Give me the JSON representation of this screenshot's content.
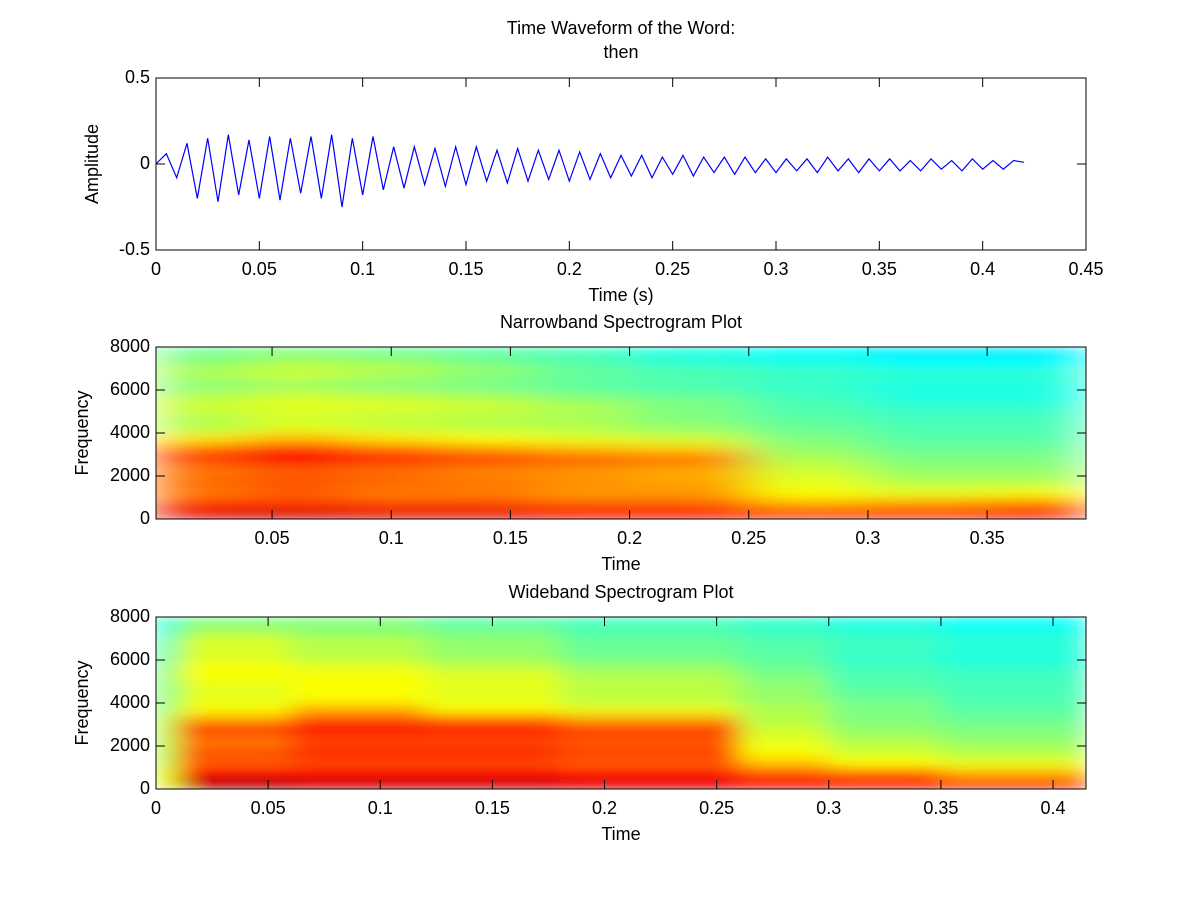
{
  "chart_data": [
    {
      "type": "line",
      "title": [
        "Time Waveform of the Word:",
        "then"
      ],
      "xlabel": "Time (s)",
      "ylabel": "Amplitude",
      "color": "#0000ff",
      "x": [
        0,
        0.005,
        0.01,
        0.015,
        0.02,
        0.025,
        0.03,
        0.035,
        0.04,
        0.045,
        0.05,
        0.055,
        0.06,
        0.065,
        0.07,
        0.075,
        0.08,
        0.085,
        0.09,
        0.095,
        0.1,
        0.105,
        0.11,
        0.115,
        0.12,
        0.125,
        0.13,
        0.135,
        0.14,
        0.145,
        0.15,
        0.155,
        0.16,
        0.165,
        0.17,
        0.175,
        0.18,
        0.185,
        0.19,
        0.195,
        0.2,
        0.205,
        0.21,
        0.215,
        0.22,
        0.225,
        0.23,
        0.235,
        0.24,
        0.245,
        0.25,
        0.255,
        0.26,
        0.265,
        0.27,
        0.275,
        0.28,
        0.285,
        0.29,
        0.295,
        0.3,
        0.305,
        0.31,
        0.315,
        0.32,
        0.325,
        0.33,
        0.335,
        0.34,
        0.345,
        0.35,
        0.355,
        0.36,
        0.365,
        0.37,
        0.375,
        0.38,
        0.385,
        0.39,
        0.395,
        0.4,
        0.405,
        0.41,
        0.415,
        0.42
      ],
      "values": [
        0,
        0.06,
        -0.08,
        0.12,
        -0.2,
        0.15,
        -0.22,
        0.17,
        -0.18,
        0.14,
        -0.2,
        0.16,
        -0.21,
        0.15,
        -0.17,
        0.16,
        -0.2,
        0.17,
        -0.25,
        0.15,
        -0.18,
        0.16,
        -0.15,
        0.1,
        -0.14,
        0.1,
        -0.12,
        0.09,
        -0.13,
        0.1,
        -0.12,
        0.1,
        -0.1,
        0.08,
        -0.11,
        0.09,
        -0.1,
        0.08,
        -0.09,
        0.08,
        -0.1,
        0.07,
        -0.09,
        0.06,
        -0.08,
        0.05,
        -0.07,
        0.05,
        -0.08,
        0.04,
        -0.06,
        0.05,
        -0.07,
        0.04,
        -0.05,
        0.04,
        -0.06,
        0.04,
        -0.05,
        0.03,
        -0.05,
        0.03,
        -0.04,
        0.03,
        -0.05,
        0.04,
        -0.04,
        0.03,
        -0.05,
        0.03,
        -0.04,
        0.03,
        -0.04,
        0.02,
        -0.04,
        0.03,
        -0.03,
        0.02,
        -0.04,
        0.03,
        -0.03,
        0.02,
        -0.03,
        0.02,
        0.01
      ],
      "xlim": [
        0,
        0.45
      ],
      "xticks": [
        0,
        0.05,
        0.1,
        0.15,
        0.2,
        0.25,
        0.3,
        0.35,
        0.4,
        0.45
      ],
      "ylim": [
        -0.5,
        0.5
      ],
      "yticks": [
        -0.5,
        0,
        0.5
      ]
    },
    {
      "type": "heatmap",
      "title": "Narrowband Spectrogram Plot",
      "xlabel": "Time",
      "ylabel": "Frequency",
      "colormap": "jet",
      "clim": [
        0,
        1
      ],
      "x_bins": [
        0.0013,
        0.04,
        0.08,
        0.12,
        0.16,
        0.2,
        0.25,
        0.3,
        0.35,
        0.3915
      ],
      "y_bins": [
        0,
        500,
        1000,
        1500,
        2000,
        2500,
        3000,
        3500,
        4000,
        4500,
        5000,
        5500,
        6000,
        6500,
        7000,
        7500,
        8000
      ],
      "z": [
        [
          0.9,
          0.92,
          0.9,
          0.9,
          0.88,
          0.88,
          0.85,
          0.85,
          0.88
        ],
        [
          0.82,
          0.82,
          0.8,
          0.8,
          0.78,
          0.78,
          0.7,
          0.72,
          0.75
        ],
        [
          0.75,
          0.78,
          0.75,
          0.75,
          0.72,
          0.72,
          0.62,
          0.6,
          0.62
        ],
        [
          0.78,
          0.8,
          0.78,
          0.76,
          0.74,
          0.72,
          0.6,
          0.55,
          0.55
        ],
        [
          0.75,
          0.78,
          0.76,
          0.74,
          0.72,
          0.7,
          0.58,
          0.52,
          0.52
        ],
        [
          0.82,
          0.88,
          0.84,
          0.82,
          0.8,
          0.78,
          0.55,
          0.5,
          0.5
        ],
        [
          0.78,
          0.84,
          0.78,
          0.74,
          0.7,
          0.68,
          0.52,
          0.48,
          0.48
        ],
        [
          0.65,
          0.7,
          0.65,
          0.62,
          0.6,
          0.58,
          0.5,
          0.46,
          0.46
        ],
        [
          0.55,
          0.6,
          0.58,
          0.56,
          0.55,
          0.52,
          0.48,
          0.45,
          0.45
        ],
        [
          0.55,
          0.58,
          0.56,
          0.55,
          0.54,
          0.5,
          0.46,
          0.44,
          0.44
        ],
        [
          0.58,
          0.6,
          0.6,
          0.58,
          0.55,
          0.5,
          0.45,
          0.42,
          0.42
        ],
        [
          0.55,
          0.58,
          0.56,
          0.54,
          0.5,
          0.48,
          0.44,
          0.4,
          0.4
        ],
        [
          0.5,
          0.52,
          0.5,
          0.48,
          0.46,
          0.44,
          0.42,
          0.4,
          0.4
        ],
        [
          0.55,
          0.58,
          0.55,
          0.52,
          0.48,
          0.46,
          0.44,
          0.42,
          0.42
        ],
        [
          0.52,
          0.55,
          0.54,
          0.5,
          0.46,
          0.42,
          0.4,
          0.38,
          0.38
        ],
        [
          0.48,
          0.5,
          0.48,
          0.46,
          0.44,
          0.4,
          0.38,
          0.36,
          0.36
        ]
      ],
      "xlim": [
        0.0013,
        0.3915
      ],
      "xticks": [
        0.05,
        0.1,
        0.15,
        0.2,
        0.25,
        0.3,
        0.35
      ],
      "ylim": [
        0,
        8000
      ],
      "yticks": [
        0,
        2000,
        4000,
        6000,
        8000
      ]
    },
    {
      "type": "heatmap",
      "title": "Wideband Spectrogram Plot",
      "xlabel": "Time",
      "ylabel": "Frequency",
      "colormap": "jet",
      "clim": [
        0,
        1
      ],
      "x_bins": [
        0,
        0.01,
        0.06,
        0.12,
        0.18,
        0.26,
        0.3,
        0.35,
        0.4147
      ],
      "y_bins": [
        0,
        500,
        1000,
        1500,
        2000,
        2500,
        3000,
        3500,
        4000,
        4500,
        5000,
        5500,
        6000,
        6500,
        7000,
        7500,
        8000
      ],
      "z": [
        [
          0.6,
          0.95,
          0.92,
          0.92,
          0.9,
          0.88,
          0.86,
          0.85
        ],
        [
          0.6,
          0.88,
          0.88,
          0.88,
          0.86,
          0.8,
          0.78,
          0.7
        ],
        [
          0.55,
          0.78,
          0.8,
          0.8,
          0.78,
          0.68,
          0.62,
          0.6
        ],
        [
          0.55,
          0.8,
          0.85,
          0.85,
          0.82,
          0.62,
          0.58,
          0.55
        ],
        [
          0.55,
          0.75,
          0.8,
          0.8,
          0.78,
          0.6,
          0.55,
          0.52
        ],
        [
          0.55,
          0.85,
          0.88,
          0.86,
          0.84,
          0.58,
          0.52,
          0.5
        ],
        [
          0.55,
          0.72,
          0.8,
          0.78,
          0.72,
          0.55,
          0.5,
          0.48
        ],
        [
          0.5,
          0.62,
          0.7,
          0.62,
          0.6,
          0.55,
          0.5,
          0.46
        ],
        [
          0.5,
          0.6,
          0.62,
          0.6,
          0.56,
          0.52,
          0.48,
          0.45
        ],
        [
          0.48,
          0.6,
          0.62,
          0.6,
          0.56,
          0.52,
          0.46,
          0.44
        ],
        [
          0.5,
          0.62,
          0.62,
          0.6,
          0.55,
          0.5,
          0.45,
          0.44
        ],
        [
          0.48,
          0.62,
          0.6,
          0.56,
          0.52,
          0.48,
          0.44,
          0.42
        ],
        [
          0.45,
          0.58,
          0.55,
          0.52,
          0.48,
          0.46,
          0.42,
          0.4
        ],
        [
          0.45,
          0.6,
          0.56,
          0.52,
          0.48,
          0.46,
          0.44,
          0.42
        ],
        [
          0.42,
          0.55,
          0.52,
          0.5,
          0.46,
          0.44,
          0.42,
          0.4
        ],
        [
          0.4,
          0.5,
          0.5,
          0.46,
          0.44,
          0.42,
          0.4,
          0.38
        ]
      ],
      "xlim": [
        0,
        0.4147
      ],
      "xticks": [
        0,
        0.05,
        0.1,
        0.15,
        0.2,
        0.25,
        0.3,
        0.35,
        0.4
      ],
      "ylim": [
        0,
        8000
      ],
      "yticks": [
        0,
        2000,
        4000,
        6000,
        8000
      ]
    }
  ]
}
